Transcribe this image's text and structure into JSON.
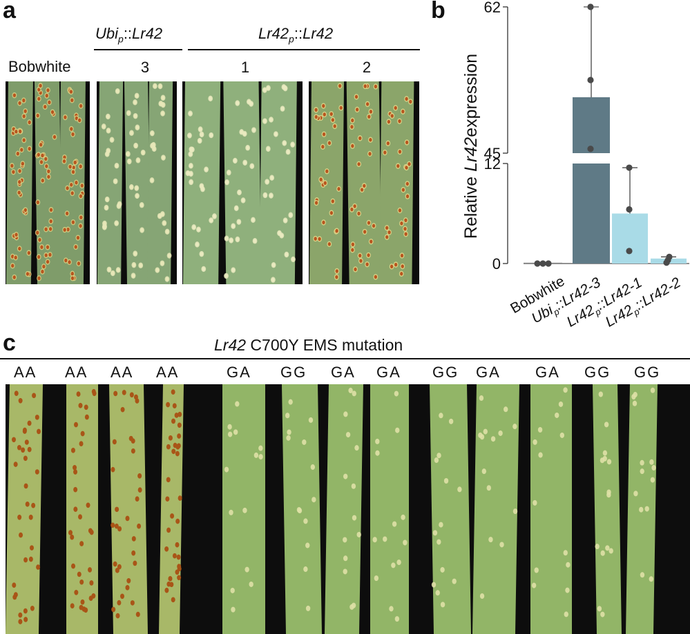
{
  "panel_a": {
    "label": "a",
    "header_ubi_main": "Ubi",
    "header_ubi_sub": "p",
    "header_ubi_tail": "::",
    "header_ubi_gene": "Lr42",
    "header_native_main": "Lr42",
    "header_native_sub": "p",
    "header_native_tail": "::",
    "header_native_gene": "Lr42",
    "control_label": "Bobwhite",
    "line_numbers": [
      "3",
      "1",
      "2"
    ],
    "photos": [
      {
        "name": "bobwhite",
        "leaves": 3,
        "pustule": "#b8561f",
        "halo": "#d9d184",
        "base": "#7f9c6a",
        "density": 1.0
      },
      {
        "name": "ubi-3",
        "leaves": 3,
        "pustule": "#e8e7b8",
        "halo": "#e8e7b8",
        "base": "#86a575",
        "density": 0.5
      },
      {
        "name": "native-1",
        "leaves": 3,
        "pustule": "#eaeac0",
        "halo": "#eaeac0",
        "base": "#8fb07c",
        "density": 0.6
      },
      {
        "name": "native-2",
        "leaves": 3,
        "pustule": "#b8561f",
        "halo": "#e3d98c",
        "base": "#8ba56a",
        "density": 0.8
      }
    ]
  },
  "panel_b": {
    "label": "b",
    "ylabel_pre": "Relative ",
    "ylabel_gene": "Lr42",
    "ylabel_post": "expression",
    "tick_labels": [
      "0",
      "12",
      "45",
      "62"
    ],
    "x_labels": [
      {
        "main": "Bobwhite",
        "sub": "",
        "rest": ""
      },
      {
        "main": "Ubi",
        "sub": "p",
        "rest": "::Lr42-3"
      },
      {
        "main": "Lr42",
        "sub": "p",
        "rest": "::Lr42-1"
      },
      {
        "main": "Lr42",
        "sub": "p",
        "rest": "::Lr42-2"
      }
    ]
  },
  "chart_data": {
    "type": "bar",
    "categories": [
      "Bobwhite",
      "Ubi_p::Lr42-3",
      "Lr42_p::Lr42-1",
      "Lr42_p::Lr42-2"
    ],
    "values": [
      0.1,
      51.5,
      6.0,
      0.6
    ],
    "points": [
      [
        0,
        0,
        0
      ],
      [
        45.5,
        53.5,
        62
      ],
      [
        1.5,
        6.5,
        11.5
      ],
      [
        0.1,
        0.4,
        0.8
      ]
    ],
    "error_max": [
      0.1,
      62,
      11.5,
      0.8
    ],
    "colors": [
      "#888888",
      "#5f7a86",
      "#a9dbe7",
      "#a9dbe7"
    ],
    "ylabel": "Relative Lr42 expression",
    "ylim": [
      0,
      62
    ],
    "y_axis_break": [
      12,
      45
    ],
    "grid": false
  },
  "panel_c": {
    "label": "c",
    "title_gene": "Lr42",
    "title_rest": " C700Y EMS mutation",
    "genotypes": [
      "AA",
      "AA",
      "AA",
      "AA",
      "GA",
      "GG",
      "GA",
      "GA",
      "GG",
      "GA",
      "GA",
      "GG",
      "GG"
    ]
  },
  "colors": {
    "leaf_green": "#8fb36b",
    "rust": "#b35a1c",
    "background_cloth": "#0d0d0d"
  }
}
